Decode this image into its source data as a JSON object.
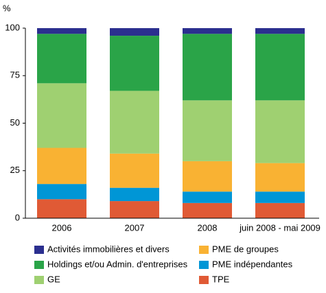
{
  "chart_data": {
    "type": "stacked_bar",
    "y_label": "%",
    "categories": [
      "2006",
      "2007",
      "2008",
      "juin 2008 - mai 2009"
    ],
    "series": [
      {
        "name": "TPE",
        "color": "#e05a35",
        "values": [
          10,
          9,
          8,
          8
        ]
      },
      {
        "name": "PME indépendantes",
        "color": "#0096d6",
        "values": [
          8,
          7,
          6,
          6
        ]
      },
      {
        "name": "PME de groupes",
        "color": "#f9b233",
        "values": [
          19,
          18,
          16,
          15
        ]
      },
      {
        "name": "GE",
        "color": "#9fd071",
        "values": [
          34,
          33,
          32,
          33
        ]
      },
      {
        "name": "Holdings et/ou Admin. d'entreprises",
        "color": "#2aa448",
        "values": [
          26,
          29,
          35,
          35
        ]
      },
      {
        "name": "Activités immobilières et divers",
        "color": "#2b2f8f",
        "values": [
          3,
          4,
          3,
          3
        ]
      }
    ],
    "ylim": [
      0,
      100
    ],
    "yticks": [
      0,
      25,
      50,
      75,
      100
    ],
    "grid": false
  }
}
